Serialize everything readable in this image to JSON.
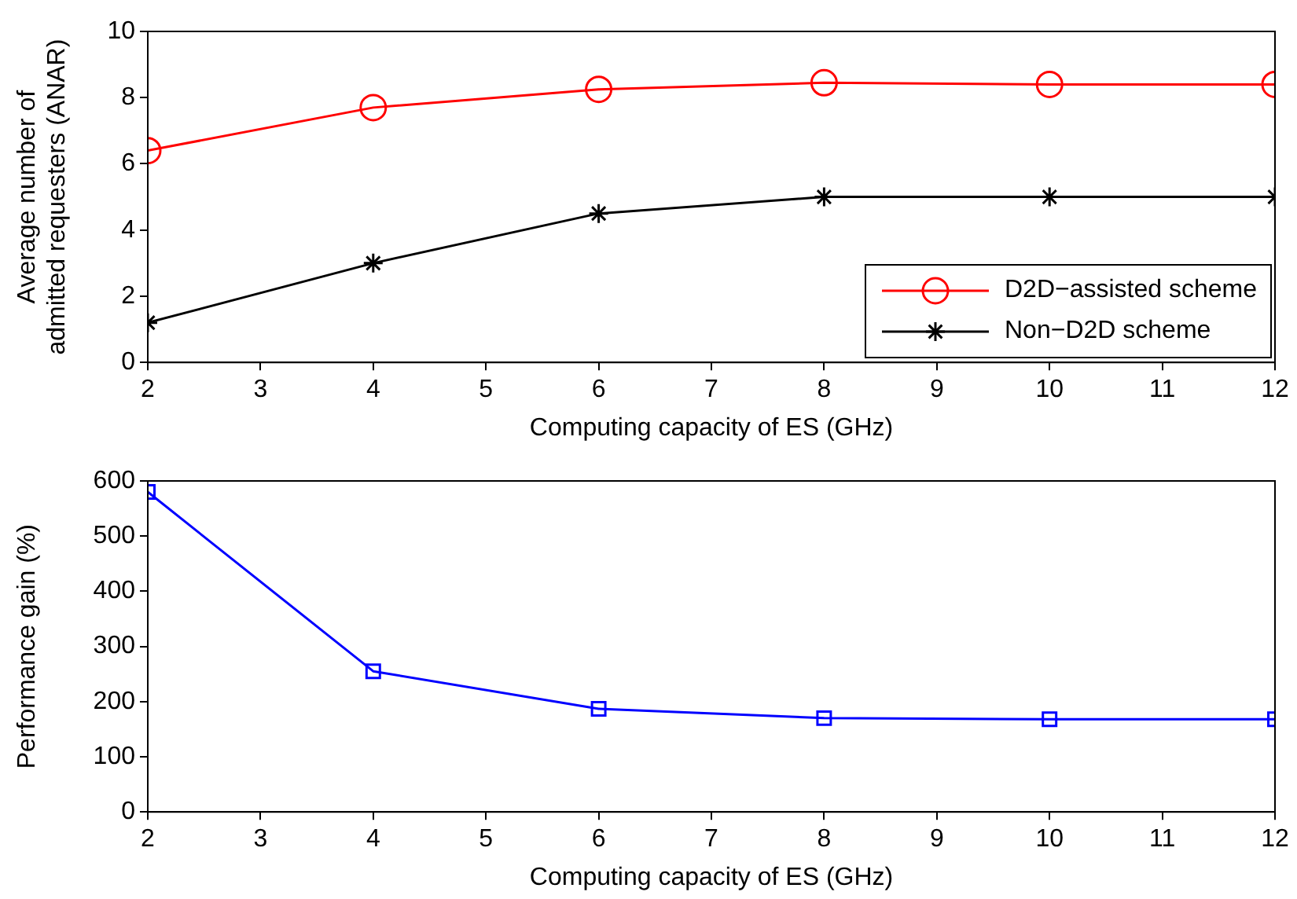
{
  "chart_data": [
    {
      "type": "line",
      "xlabel": "Computing capacity of ES (GHz)",
      "ylabel": "Average number of\nadmitted requesters (ANAR)",
      "x": [
        2,
        4,
        6,
        8,
        10,
        12
      ],
      "xlim": [
        2,
        12
      ],
      "xticks": [
        2,
        3,
        4,
        5,
        6,
        7,
        8,
        9,
        10,
        11,
        12
      ],
      "ylim": [
        0,
        10
      ],
      "yticks": [
        0,
        2,
        4,
        6,
        8,
        10
      ],
      "grid": false,
      "legend": "bottom right",
      "series": [
        {
          "name": "D2D−assisted scheme",
          "color": "#ff0000",
          "marker": "circle",
          "values": [
            6.4,
            7.7,
            8.25,
            8.45,
            8.4,
            8.4
          ]
        },
        {
          "name": "Non−D2D scheme",
          "color": "#000000",
          "marker": "cross",
          "values": [
            1.2,
            3.0,
            4.5,
            5.0,
            5.0,
            5.0
          ]
        }
      ]
    },
    {
      "type": "line",
      "xlabel": "Computing capacity of ES (GHz)",
      "ylabel": "Performance gain (%)",
      "x": [
        2,
        4,
        6,
        8,
        10,
        12
      ],
      "xlim": [
        2,
        12
      ],
      "xticks": [
        2,
        3,
        4,
        5,
        6,
        7,
        8,
        9,
        10,
        11,
        12
      ],
      "ylim": [
        0,
        600
      ],
      "yticks": [
        0,
        100,
        200,
        300,
        400,
        500,
        600
      ],
      "grid": false,
      "legend": false,
      "series": [
        {
          "color": "#0000ff",
          "marker": "square",
          "values": [
            580,
            255,
            187,
            170,
            168,
            168
          ]
        }
      ]
    }
  ]
}
